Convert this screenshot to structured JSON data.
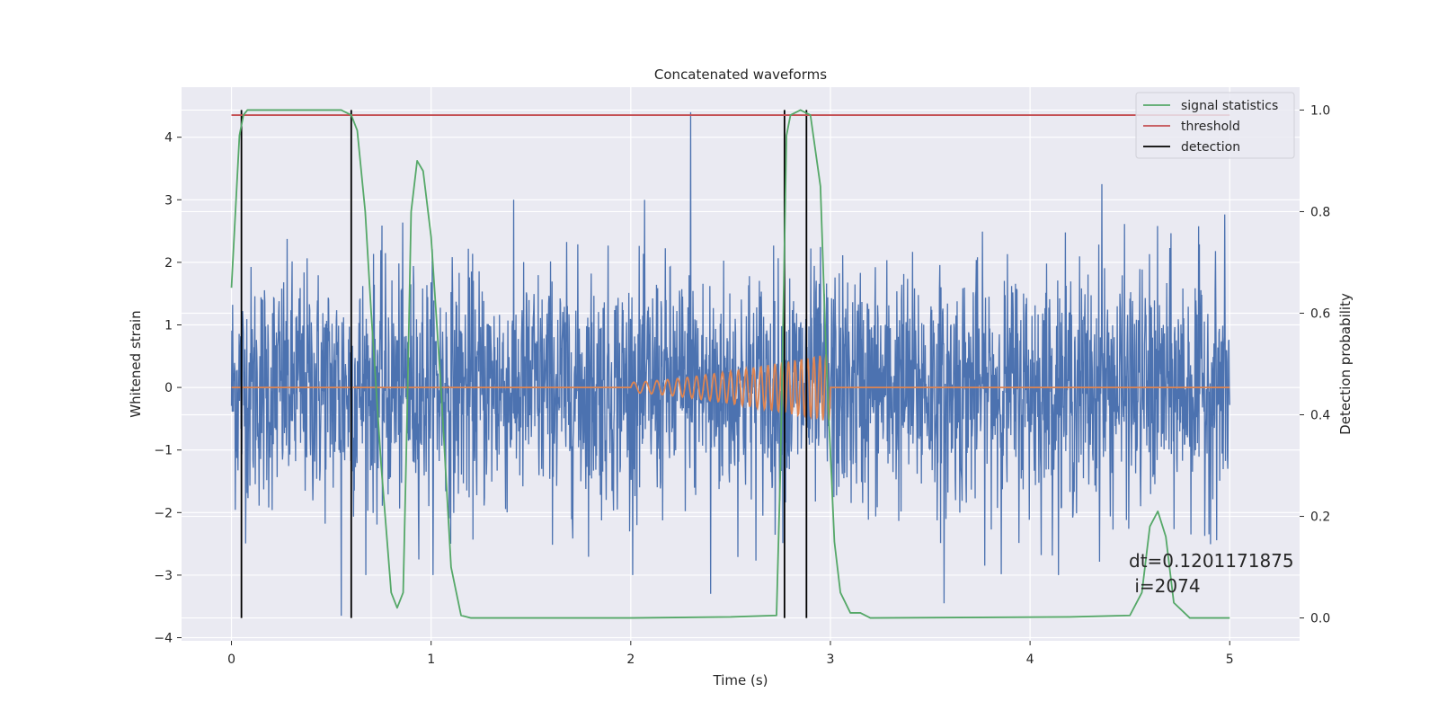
{
  "chart_data": {
    "type": "line",
    "title": "Concatenated waveforms",
    "xlabel": "Time (s)",
    "ylabel_left": "Whitened strain",
    "ylabel_right": "Detection probability",
    "xlim": [
      -0.25,
      5.35
    ],
    "ylim_left": [
      -4.05,
      4.8
    ],
    "ylim_right": [
      -0.045,
      1.045
    ],
    "x_ticks": [
      0,
      1,
      2,
      3,
      4,
      5
    ],
    "x_tick_labels": [
      "0",
      "1",
      "2",
      "3",
      "4",
      "5"
    ],
    "y_left_ticks": [
      -4,
      -3,
      -2,
      -1,
      0,
      1,
      2,
      3,
      4
    ],
    "y_left_tick_labels": [
      "−4",
      "−3",
      "−2",
      "−1",
      "0",
      "1",
      "2",
      "3",
      "4"
    ],
    "y_right_ticks": [
      0.0,
      0.2,
      0.4,
      0.6,
      0.8,
      1.0
    ],
    "y_right_tick_labels": [
      "0.0",
      "0.2",
      "0.4",
      "0.6",
      "0.8",
      "1.0"
    ],
    "grid": true,
    "legend_position": "top-right",
    "legend": [
      "signal statistics",
      "threshold",
      "detection"
    ],
    "series": [
      {
        "name": "",
        "axis": "left",
        "kind": "noise",
        "color": "#4c72b0",
        "x_range": [
          0,
          5
        ],
        "typical_amplitude": 1.5,
        "peak_spikes": [
          {
            "x": 0.55,
            "y": -3.65
          },
          {
            "x": 2.3,
            "y": 4.4
          },
          {
            "x": 4.36,
            "y": 3.25
          },
          {
            "x": 3.57,
            "y": -3.45
          },
          {
            "x": 2.4,
            "y": -3.3
          }
        ]
      },
      {
        "name": "",
        "axis": "left",
        "kind": "chirp",
        "color": "#dd8452",
        "x_range": [
          0,
          5
        ],
        "chirp_start": 2.0,
        "chirp_end": 3.0,
        "peak_amplitude": 0.55
      },
      {
        "name": "signal statistics",
        "axis": "right",
        "color": "#55a868",
        "x": [
          0.0,
          0.02,
          0.04,
          0.06,
          0.08,
          0.1,
          0.3,
          0.55,
          0.6,
          0.63,
          0.67,
          0.7,
          0.75,
          0.8,
          0.83,
          0.86,
          0.88,
          0.9,
          0.93,
          0.96,
          1.0,
          1.05,
          1.1,
          1.15,
          1.2,
          2.0,
          2.5,
          2.73,
          2.75,
          2.78,
          2.8,
          2.85,
          2.9,
          2.95,
          2.98,
          3.02,
          3.05,
          3.1,
          3.15,
          3.2,
          4.2,
          4.5,
          4.56,
          4.6,
          4.64,
          4.68,
          4.72,
          4.8,
          5.0
        ],
        "y": [
          0.65,
          0.8,
          0.95,
          0.99,
          1.0,
          1.0,
          1.0,
          1.0,
          0.99,
          0.96,
          0.8,
          0.6,
          0.3,
          0.05,
          0.02,
          0.05,
          0.4,
          0.8,
          0.9,
          0.88,
          0.75,
          0.45,
          0.1,
          0.005,
          0.0,
          0.0,
          0.002,
          0.005,
          0.3,
          0.95,
          0.99,
          1.0,
          0.99,
          0.85,
          0.5,
          0.15,
          0.05,
          0.01,
          0.01,
          0.0,
          0.002,
          0.005,
          0.05,
          0.18,
          0.21,
          0.16,
          0.03,
          0.0,
          0.0
        ]
      },
      {
        "name": "threshold",
        "axis": "right",
        "color": "#c44e52",
        "x": [
          0.0,
          5.0
        ],
        "y": [
          0.99,
          0.99
        ]
      }
    ],
    "detections": {
      "name": "detection",
      "color": "#000000",
      "x": [
        0.05,
        0.6,
        2.77,
        2.88
      ],
      "y_range": [
        0.0,
        1.0
      ]
    },
    "annotation": {
      "line1": "dt=0.1201171875",
      "line2": " i=2074"
    }
  }
}
